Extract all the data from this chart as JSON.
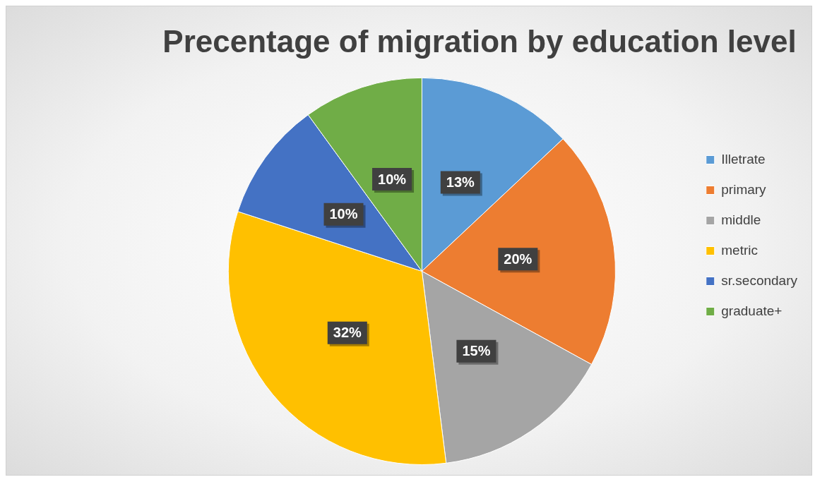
{
  "chart_data": {
    "type": "pie",
    "title": "Precentage of migration by education level",
    "categories": [
      "Illetrate",
      "primary",
      "middle",
      "metric",
      "sr.secondary",
      "graduate+"
    ],
    "values": [
      13,
      20,
      15,
      32,
      10,
      10
    ],
    "value_labels": [
      "13%",
      "20%",
      "15%",
      "32%",
      "10%",
      "10%"
    ],
    "colors": [
      "#5b9bd5",
      "#ed7d31",
      "#a5a5a5",
      "#ffc000",
      "#4472c4",
      "#70ad47"
    ],
    "legend": "right"
  }
}
